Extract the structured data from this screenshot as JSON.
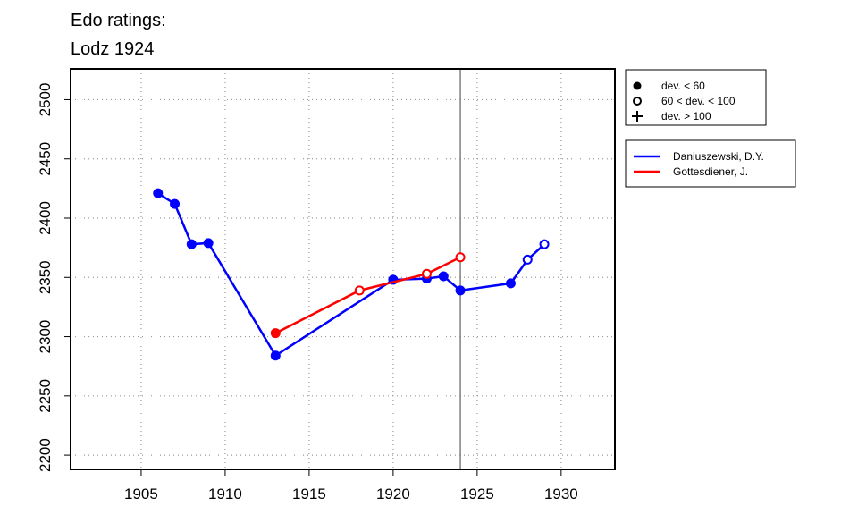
{
  "chart_data": {
    "type": "line",
    "title": [
      "Edo ratings:",
      "Lodz 1924"
    ],
    "xlabel": "",
    "ylabel": "",
    "xlim": [
      1900.8,
      1933.2
    ],
    "ylim": [
      2188,
      2526
    ],
    "x_ticks": [
      1905,
      1910,
      1915,
      1920,
      1925,
      1930
    ],
    "y_ticks": [
      2200,
      2250,
      2300,
      2350,
      2400,
      2450,
      2500
    ],
    "grid": true,
    "reference_line_x": 1924,
    "legend_markers": [
      {
        "symbol": "filled-circle",
        "label": "dev. < 60"
      },
      {
        "symbol": "open-circle",
        "label": "60 < dev. < 100"
      },
      {
        "symbol": "plus",
        "label": "dev. > 100"
      }
    ],
    "series": [
      {
        "name": "Daniuszewski, D.Y.",
        "color": "#0000ff",
        "points": [
          {
            "x": 1906,
            "y": 2421,
            "marker": "filled"
          },
          {
            "x": 1907,
            "y": 2412,
            "marker": "filled"
          },
          {
            "x": 1908,
            "y": 2378,
            "marker": "filled"
          },
          {
            "x": 1909,
            "y": 2379,
            "marker": "filled"
          },
          {
            "x": 1913,
            "y": 2284,
            "marker": "filled"
          },
          {
            "x": 1920,
            "y": 2348,
            "marker": "filled"
          },
          {
            "x": 1922,
            "y": 2349,
            "marker": "filled"
          },
          {
            "x": 1923,
            "y": 2351,
            "marker": "filled"
          },
          {
            "x": 1924,
            "y": 2339,
            "marker": "filled"
          },
          {
            "x": 1927,
            "y": 2345,
            "marker": "filled"
          },
          {
            "x": 1928,
            "y": 2365,
            "marker": "open"
          },
          {
            "x": 1929,
            "y": 2378,
            "marker": "open"
          }
        ]
      },
      {
        "name": "Gottesdiener, J.",
        "color": "#ff0000",
        "points": [
          {
            "x": 1913,
            "y": 2303,
            "marker": "filled"
          },
          {
            "x": 1918,
            "y": 2339,
            "marker": "open"
          },
          {
            "x": 1922,
            "y": 2353,
            "marker": "open"
          },
          {
            "x": 1924,
            "y": 2367,
            "marker": "open"
          }
        ]
      }
    ]
  }
}
